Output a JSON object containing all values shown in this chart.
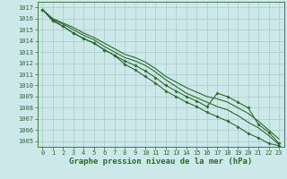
{
  "bg_color": "#cce8e8",
  "grid_color": "#aacccc",
  "line_color": "#2d6a2d",
  "title": "Graphe pression niveau de la mer (hPa)",
  "xlabel_ticks": [
    0,
    1,
    2,
    3,
    4,
    5,
    6,
    7,
    8,
    9,
    10,
    11,
    12,
    13,
    14,
    15,
    16,
    17,
    18,
    19,
    20,
    21,
    22,
    23
  ],
  "ylim": [
    1004.5,
    1017.5
  ],
  "yticks": [
    1005,
    1006,
    1007,
    1008,
    1009,
    1010,
    1011,
    1012,
    1013,
    1014,
    1015,
    1016,
    1017
  ],
  "series": [
    {
      "y": [
        1016.8,
        1016.0,
        1015.6,
        1015.2,
        1014.7,
        1014.3,
        1013.8,
        1013.3,
        1012.8,
        1012.5,
        1012.1,
        1011.5,
        1010.8,
        1010.3,
        1009.8,
        1009.4,
        1009.0,
        1008.8,
        1008.5,
        1008.0,
        1007.5,
        1006.8,
        1006.0,
        1005.2
      ],
      "marker": false
    },
    {
      "y": [
        1016.8,
        1015.9,
        1015.5,
        1015.0,
        1014.5,
        1014.1,
        1013.5,
        1013.0,
        1012.5,
        1012.2,
        1011.8,
        1011.2,
        1010.5,
        1009.9,
        1009.3,
        1008.9,
        1008.5,
        1008.1,
        1007.8,
        1007.3,
        1006.7,
        1006.2,
        1005.5,
        1004.7
      ],
      "marker": false
    },
    {
      "y": [
        1016.8,
        1015.8,
        1015.3,
        1014.7,
        1014.2,
        1013.8,
        1013.2,
        1012.7,
        1012.2,
        1011.8,
        1011.3,
        1010.7,
        1010.0,
        1009.5,
        1009.0,
        1008.6,
        1008.1,
        1009.3,
        1009.0,
        1008.5,
        1008.0,
        1006.5,
        1005.8,
        1004.8
      ],
      "marker": true
    },
    {
      "y": [
        1016.8,
        1015.8,
        1015.3,
        1014.7,
        1014.2,
        1013.8,
        1013.2,
        1012.7,
        1011.9,
        1011.4,
        1010.8,
        1010.2,
        1009.5,
        1009.0,
        1008.5,
        1008.1,
        1007.6,
        1007.2,
        1006.8,
        1006.3,
        1005.7,
        1005.3,
        1004.8,
        1004.6
      ],
      "marker": true
    }
  ],
  "title_fontsize": 6.5,
  "tick_fontsize": 5.0,
  "linewidth": 0.8,
  "markersize": 2.0
}
